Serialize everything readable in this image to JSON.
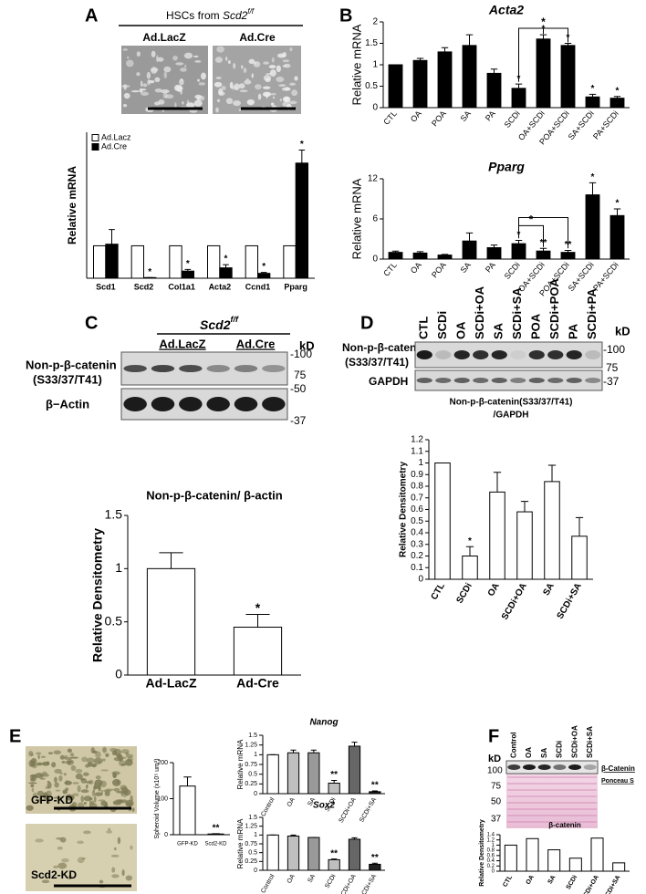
{
  "figure": {
    "panel_labels": [
      "A",
      "B",
      "C",
      "D",
      "E",
      "F"
    ]
  },
  "panel_A": {
    "title_prefix": "HSCs from ",
    "title_gene": "Scd2",
    "title_sup": "f/f",
    "image_labels": [
      "Ad.LacZ",
      "Ad.Cre"
    ]
  },
  "panel_C": {
    "title_gene": "Scd2",
    "title_sup": "f/f",
    "groups": [
      "Ad.LacZ",
      "Ad.Cre"
    ],
    "unit": "kD",
    "markers": [
      "-100",
      "75",
      "-50",
      "-37"
    ],
    "rows": [
      [
        "Non-p-β-catenin",
        "(S33/37/T41)"
      ],
      [
        "β−Actin"
      ]
    ]
  },
  "panel_D": {
    "lanes": [
      "CTL",
      "SCDi",
      "OA",
      "SCDi+OA",
      "SA",
      "SCDi+SA",
      "POA",
      "SCDi+POA",
      "PA",
      "SCDi+PA"
    ],
    "unit": "kD",
    "markers": [
      "-100",
      "75",
      "-37"
    ],
    "rows": [
      [
        "Non-p-β-catenin",
        "(S33/37/T41)"
      ],
      [
        "GAPDH"
      ]
    ]
  },
  "panel_E": {
    "image_labels": [
      "GFP-KD",
      "Scd2-KD"
    ]
  },
  "panel_F": {
    "lanes": [
      "Control",
      "OA",
      "SA",
      "SCDi",
      "SCDi+OA",
      "SCDi+SA"
    ],
    "unit": "kD",
    "markers": [
      "100",
      "75",
      "50",
      "37"
    ],
    "band_labels": [
      "β-Catenin",
      "Ponceau S"
    ]
  },
  "chart_data": [
    {
      "type": "bar",
      "ylabel": "Relative mRNA",
      "categories": [
        "Scd1",
        "Scd2",
        "Col1a1",
        "Acta2",
        "Ccnd1",
        "Pparg"
      ],
      "ylim": [
        0,
        4.5
      ],
      "legend": "upper left",
      "series": [
        {
          "name": "Ad.Lacz",
          "color": "#ffffff",
          "values": [
            1,
            1,
            1,
            1,
            1,
            1
          ]
        },
        {
          "name": "Ad.Cre",
          "color": "#000000",
          "values": [
            1.05,
            0.02,
            0.22,
            0.32,
            0.15,
            3.55
          ],
          "errors": [
            0.45,
            0,
            0.05,
            0.1,
            0.03,
            0.4
          ],
          "significance": [
            null,
            "*",
            "*",
            "*",
            "*",
            "*"
          ]
        }
      ]
    },
    {
      "type": "bar",
      "title": "Acta2",
      "title_style": "italic",
      "ylabel": "Relative mRNA",
      "categories": [
        "CTL",
        "OA",
        "POA",
        "SA",
        "PA",
        "SCDi",
        "OA+SCDi",
        "POA+SCDi",
        "SA+SCDi",
        "PA+SCDi"
      ],
      "values": [
        1,
        1.1,
        1.3,
        1.45,
        0.8,
        0.45,
        1.6,
        1.45,
        0.25,
        0.22
      ],
      "errors": [
        0,
        0.05,
        0.1,
        0.25,
        0.1,
        0.1,
        0.1,
        0.05,
        0.06,
        0.04
      ],
      "significance": [
        null,
        null,
        null,
        null,
        null,
        "*",
        "*",
        "*",
        "*",
        "*"
      ],
      "bracket_label": "*",
      "color": "#000000",
      "ylim": [
        0,
        2
      ],
      "yticks": [
        0,
        0.5,
        1,
        1.5,
        2
      ]
    },
    {
      "type": "bar",
      "title": "Pparg",
      "title_style": "italic",
      "ylabel": "Relative mRNA",
      "categories": [
        "CTL",
        "OA",
        "POA",
        "SA",
        "PA",
        "SCDi",
        "OA+SCDi",
        "POA+SCDi",
        "SA+SCDi",
        "PA+SCDi"
      ],
      "values": [
        1,
        0.9,
        0.6,
        2.7,
        1.7,
        2.3,
        1.2,
        1.0,
        9.6,
        6.5
      ],
      "errors": [
        0.2,
        0.2,
        0.1,
        1.2,
        0.4,
        0.5,
        0.4,
        0.3,
        1.8,
        1.0
      ],
      "significance": [
        null,
        null,
        null,
        null,
        null,
        "*",
        "**",
        "**",
        "*",
        "*"
      ],
      "bracket_label": "*",
      "color": "#000000",
      "ylim": [
        0,
        12
      ],
      "yticks": [
        0,
        6,
        12
      ]
    },
    {
      "type": "bar",
      "title": "Non-p-β-catenin/ β-actin",
      "ylabel": "Relative Densitometry",
      "categories": [
        "Ad-LacZ",
        "Ad-Cre"
      ],
      "values": [
        1,
        0.45
      ],
      "errors": [
        0.15,
        0.12
      ],
      "significance": [
        null,
        "*"
      ],
      "color": "#ffffff",
      "ylim": [
        0,
        1.5
      ],
      "yticks": [
        0,
        0.5,
        1,
        1.5
      ]
    },
    {
      "type": "bar",
      "title": [
        "Non-p-β-catenin(S33/37/T41)",
        "/GAPDH"
      ],
      "ylabel": "Relative Densitometry",
      "categories": [
        "CTL",
        "SCDi",
        "OA",
        "SCDi+OA",
        "SA",
        "SCDi+SA"
      ],
      "values": [
        1,
        0.2,
        0.75,
        0.58,
        0.84,
        0.37
      ],
      "errors": [
        0,
        0.08,
        0.17,
        0.09,
        0.14,
        0.16
      ],
      "significance": [
        null,
        "*",
        null,
        null,
        null,
        null
      ],
      "color": "#ffffff",
      "ylim": [
        0,
        1.2
      ],
      "yticks": [
        0,
        0.1,
        0.2,
        0.3,
        0.4,
        0.5,
        0.6,
        0.7,
        0.8,
        0.9,
        1,
        1.1,
        1.2
      ]
    },
    {
      "type": "bar",
      "ylabel": "Spheroid Volume (x10⁵ um³)",
      "categories": [
        "GFP-KD",
        "Scd2-KD"
      ],
      "values": [
        135,
        2
      ],
      "errors": [
        25,
        1
      ],
      "significance": [
        null,
        "**"
      ],
      "color": "#ffffff",
      "ylim": [
        0,
        200
      ],
      "yticks": [
        0,
        100,
        200
      ]
    },
    {
      "type": "bar",
      "title": "Nanog",
      "title_style": "italic",
      "ylabel": "Relative mRNA",
      "categories": [
        "Control",
        "OA",
        "SA",
        "SCDi",
        "SCDi+OA",
        "SCDi+SA"
      ],
      "values": [
        1,
        1.05,
        1.05,
        0.27,
        1.22,
        0.05
      ],
      "errors": [
        0,
        0.07,
        0.07,
        0.07,
        0.1,
        0.02
      ],
      "significance": [
        null,
        null,
        null,
        "**",
        null,
        "**"
      ],
      "colors": [
        "#ffffff",
        "#bfbfbf",
        "#999999",
        "#bfbfbf",
        "#666666",
        "#222222"
      ],
      "ylim": [
        0,
        1.5
      ],
      "yticks": [
        0,
        0.25,
        0.5,
        0.75,
        1,
        1.25,
        1.5
      ]
    },
    {
      "type": "bar",
      "title": "Sox2",
      "title_style": "italic",
      "ylabel": "Relative mRNA",
      "categories": [
        "Control",
        "OA",
        "SA",
        "SCDi",
        "SCDi+OA",
        "SCDi+SA"
      ],
      "values": [
        1,
        0.97,
        0.93,
        0.3,
        0.88,
        0.17
      ],
      "errors": [
        0,
        0.03,
        0,
        0.02,
        0.04,
        0.03
      ],
      "significance": [
        null,
        null,
        null,
        "**",
        null,
        "**"
      ],
      "colors": [
        "#ffffff",
        "#bfbfbf",
        "#999999",
        "#bfbfbf",
        "#666666",
        "#222222"
      ],
      "ylim": [
        0,
        1.5
      ],
      "yticks": [
        0,
        0.25,
        0.5,
        0.75,
        1,
        1.25,
        1.5
      ]
    },
    {
      "type": "bar",
      "title": "β-catenin",
      "ylabel": "Relative Densitometry",
      "categories": [
        "CTL",
        "OA",
        "SA",
        "SCDi",
        "SCDi+OA",
        "SCDi+SA"
      ],
      "values": [
        1,
        1.25,
        0.82,
        0.5,
        1.27,
        0.32
      ],
      "color": "#ffffff",
      "ylim": [
        0,
        1.4
      ],
      "yticks": [
        0,
        0.2,
        0.4,
        0.6,
        0.8,
        1,
        1.2,
        1.4
      ]
    }
  ]
}
